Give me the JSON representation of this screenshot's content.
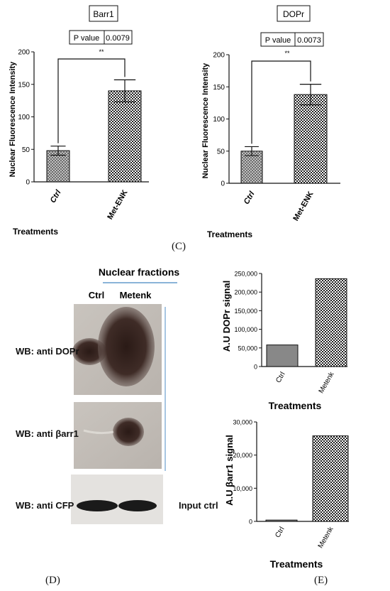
{
  "colors": {
    "ink": "#111111",
    "blot_bg": "#cfcbc6",
    "blot_band": "#3a2a26",
    "wb_line": "#8ab4d8"
  },
  "patterns": {
    "checker": "checkerboard-fill",
    "hatch": "crosshatch-fill"
  },
  "panel_c": {
    "letter": "(C)"
  },
  "panel_d": {
    "letter": "(D)",
    "header": "Nuclear fractions",
    "lanes": [
      "Ctrl",
      "Metenk"
    ],
    "rows": [
      {
        "label": "WB: anti DOPr"
      },
      {
        "label": "WB: anti βarr1"
      },
      {
        "label": "WB: anti CFP",
        "right_label": "Input ctrl"
      }
    ]
  },
  "panel_e": {
    "letter": "(E)"
  },
  "chart_data": [
    {
      "type": "bar",
      "title": "Barr1",
      "categories": [
        "Ctrl",
        "Met-ENK"
      ],
      "values": [
        48,
        140
      ],
      "errors": [
        7,
        17
      ],
      "xlabel": "Treatments",
      "ylabel": "Nuclear Fluorescence Intensity",
      "ylim": [
        0,
        200
      ],
      "yticks": [
        0,
        50,
        100,
        150,
        200
      ],
      "stats": {
        "p_label": "P value",
        "p_value": "0.0079",
        "significance": "**"
      },
      "fill": [
        "hatch",
        "checker"
      ]
    },
    {
      "type": "bar",
      "title": "DOPr",
      "categories": [
        "Ctrl",
        "Met-ENK"
      ],
      "values": [
        50,
        138
      ],
      "errors": [
        7,
        16
      ],
      "xlabel": "Treatments",
      "ylabel": "Nuclear Fluorescence Intensity",
      "ylim": [
        0,
        200
      ],
      "yticks": [
        0,
        50,
        100,
        150,
        200
      ],
      "stats": {
        "p_label": "P value",
        "p_value": "0.0073",
        "significance": "**"
      },
      "fill": [
        "hatch",
        "checker"
      ]
    },
    {
      "type": "bar",
      "categories": [
        "Ctrl",
        "Metenk"
      ],
      "values": [
        58000,
        236000
      ],
      "xlabel": "Treatments",
      "ylabel": "A.U DOPr signal",
      "ylim": [
        0,
        250000
      ],
      "yticks": [
        0,
        50000,
        100000,
        150000,
        200000,
        250000
      ],
      "ytick_labels": [
        "0",
        "50,000",
        "100,000",
        "150,000",
        "200,000",
        "250,000"
      ],
      "fill": [
        "solid",
        "checker"
      ]
    },
    {
      "type": "bar",
      "categories": [
        "Ctrl",
        "Metenk"
      ],
      "values": [
        400,
        25800
      ],
      "xlabel": "Treatments",
      "ylabel": "A.U βarr1 signal",
      "ylim": [
        0,
        30000
      ],
      "yticks": [
        0,
        10000,
        20000,
        30000
      ],
      "ytick_labels": [
        "0",
        "10,000",
        "20,000",
        "30,000"
      ],
      "fill": [
        "solid",
        "checker"
      ]
    }
  ]
}
